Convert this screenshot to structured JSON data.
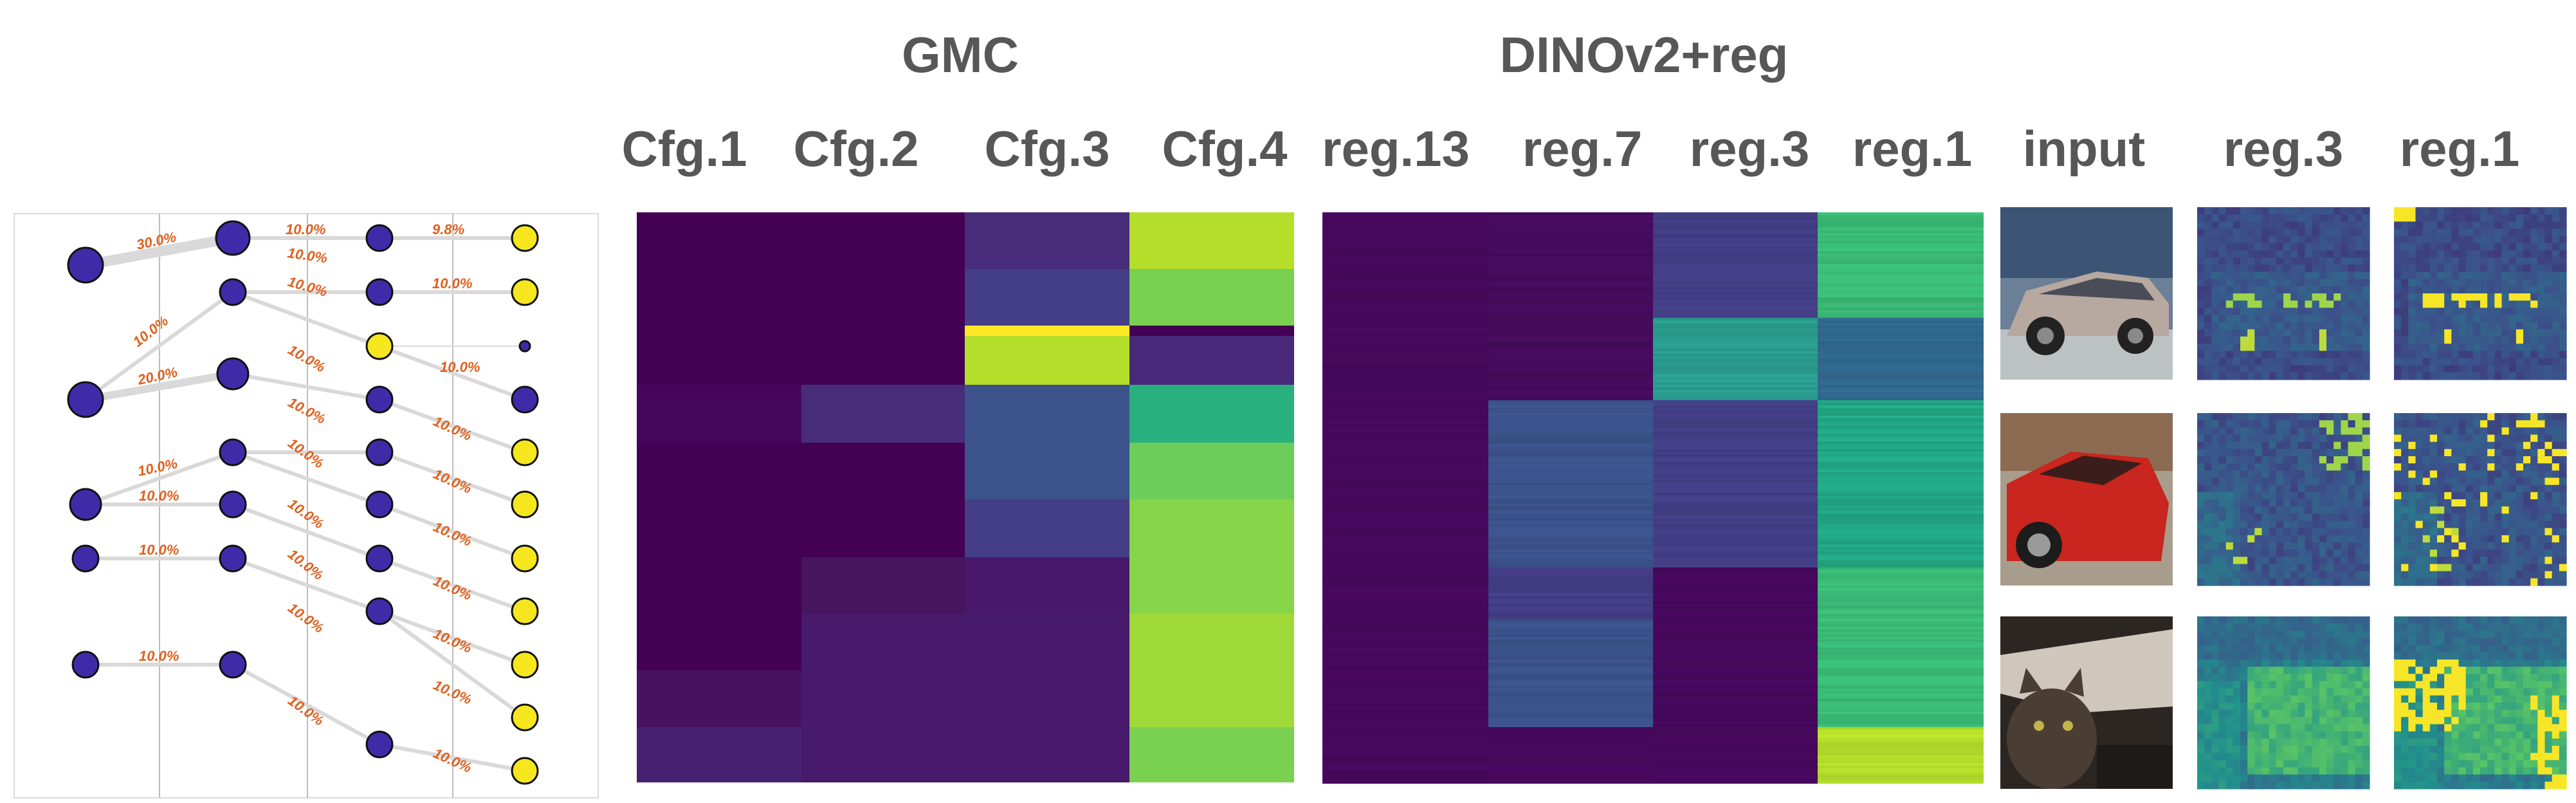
{
  "headers": {
    "group_gmc": "GMC",
    "group_dino": "DINOv2+reg",
    "cfg1": "Cfg.1",
    "cfg2": "Cfg.2",
    "cfg3": "Cfg.3",
    "cfg4": "Cfg.4",
    "reg13": "reg.13",
    "reg7": "reg.7",
    "reg3_heat": "reg.3",
    "reg1_heat": "reg.1",
    "input": "input",
    "reg3_maps": "reg.3",
    "reg1_maps": "reg.1"
  },
  "tree": {
    "colors": {
      "internal": "#3f2ba8",
      "leaf": "#f5e61e",
      "edge": "#d9d9d9",
      "label": "#e0601e"
    },
    "labels": [
      "30.0%",
      "10.0%",
      "20.0%",
      "10.0%",
      "10.0%",
      "10.0%",
      "10.0%",
      "10.0%",
      "10.0%",
      "10.0%",
      "10.0%",
      "10.0%",
      "10.0%",
      "10.0%",
      "10.0%",
      "10.0%",
      "10.0%",
      "9.8%",
      "10.0%",
      "10.0%",
      "10.0%",
      "10.0%",
      "10.0%",
      "10.0%",
      "10.0%",
      "10.0%",
      "10.0%"
    ]
  },
  "heatmap": {
    "gmc_columns": [
      "Cfg.1",
      "Cfg.2",
      "Cfg.3",
      "Cfg.4"
    ],
    "dino_columns": [
      "reg.13",
      "reg.7",
      "reg.3",
      "reg.1"
    ]
  },
  "examples": {
    "rows": [
      {
        "input": "car-silver"
      },
      {
        "input": "car-red"
      },
      {
        "input": "cat"
      }
    ]
  }
}
